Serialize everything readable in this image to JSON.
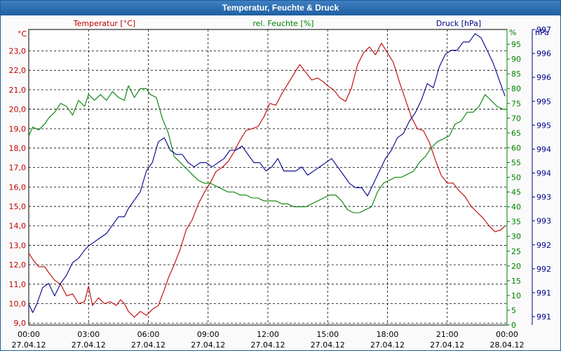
{
  "window": {
    "title": "Temperatur, Feuchte & Druck"
  },
  "chart_data": {
    "type": "line",
    "title": "Temperatur, Feuchte & Druck",
    "x_ticks": [
      {
        "time": "00:00",
        "date": "27.04.12"
      },
      {
        "time": "03:00",
        "date": "27.04.12"
      },
      {
        "time": "06:00",
        "date": "27.04.12"
      },
      {
        "time": "09:00",
        "date": "27.04.12"
      },
      {
        "time": "12:00",
        "date": "27.04.12"
      },
      {
        "time": "15:00",
        "date": "27.04.12"
      },
      {
        "time": "18:00",
        "date": "27.04.12"
      },
      {
        "time": "21:00",
        "date": "27.04.12"
      },
      {
        "time": "00:00",
        "date": "28.04.12"
      }
    ],
    "xlim_hours": [
      0,
      24
    ],
    "grid": true,
    "axes": {
      "temperature": {
        "label": "Temperatur [°C]",
        "unit": "°C",
        "color": "#c00000",
        "side": "left",
        "ylim": [
          8.9,
          24.1
        ],
        "ticks": [
          "9,0",
          "10,0",
          "11,0",
          "12,0",
          "13,0",
          "14,0",
          "15,0",
          "16,0",
          "17,0",
          "18,0",
          "19,0",
          "20,0",
          "21,0",
          "22,0",
          "23,0"
        ]
      },
      "humidity": {
        "label": "rel. Feuchte [%]",
        "unit": "%",
        "color": "#008000",
        "side": "right",
        "ylim": [
          0,
          100
        ],
        "ticks": [
          "0",
          "5",
          "10",
          "15",
          "20",
          "25",
          "30",
          "35",
          "40",
          "45",
          "50",
          "55",
          "60",
          "65",
          "70",
          "75",
          "80",
          "85",
          "90",
          "95"
        ]
      },
      "pressure": {
        "label": "Druck [hPa]",
        "unit": "hPa",
        "color": "#00008b",
        "side": "right-outer",
        "ylim": [
          990.4,
          997.5
        ],
        "ticks": [
          "991",
          "991",
          "992",
          "992",
          "993",
          "993",
          "994",
          "994",
          "995",
          "995",
          "996",
          "996",
          "997"
        ]
      }
    },
    "series": [
      {
        "name": "Temperatur [°C]",
        "axis": "temperature",
        "color": "#c00000",
        "x": [
          0,
          0.25,
          0.5,
          0.8,
          1,
          1.3,
          1.6,
          1.9,
          2.2,
          2.5,
          2.8,
          3,
          3.2,
          3.5,
          3.8,
          4.1,
          4.4,
          4.6,
          4.8,
          5,
          5.3,
          5.6,
          5.9,
          6.2,
          6.5,
          6.8,
          7,
          7.3,
          7.6,
          7.9,
          8.2,
          8.5,
          8.8,
          9.1,
          9.4,
          9.7,
          10,
          10.3,
          10.6,
          10.9,
          11.2,
          11.5,
          11.8,
          12.1,
          12.4,
          12.7,
          13,
          13.3,
          13.6,
          13.9,
          14.2,
          14.5,
          14.8,
          15,
          15.3,
          15.6,
          15.9,
          16.2,
          16.5,
          16.8,
          17.1,
          17.4,
          17.7,
          18,
          18.3,
          18.6,
          18.9,
          19.2,
          19.5,
          19.8,
          20.1,
          20.4,
          20.7,
          21,
          21.3,
          21.6,
          21.9,
          22.2,
          22.5,
          22.8,
          23.1,
          23.4,
          23.7,
          23.9
        ],
        "values": [
          12.6,
          12.2,
          11.9,
          11.9,
          11.6,
          11.2,
          11.0,
          10.4,
          10.5,
          10.0,
          10.1,
          10.9,
          9.9,
          10.3,
          10.0,
          10.1,
          9.9,
          10.2,
          10.0,
          9.6,
          9.3,
          9.6,
          9.4,
          9.7,
          9.9,
          10.7,
          11.3,
          12.0,
          12.8,
          13.8,
          14.3,
          15.1,
          15.7,
          16.2,
          16.8,
          17.0,
          17.3,
          17.8,
          18.4,
          18.9,
          19.0,
          19.1,
          19.6,
          20.3,
          20.2,
          20.8,
          21.3,
          21.8,
          22.3,
          21.9,
          21.5,
          21.6,
          21.4,
          21.2,
          21.0,
          20.6,
          20.4,
          21.1,
          22.3,
          22.9,
          23.2,
          22.8,
          23.4,
          22.9,
          22.4,
          21.4,
          20.5,
          19.6,
          19.0,
          18.9,
          18.3,
          17.4,
          16.6,
          16.2,
          16.2,
          15.8,
          15.5,
          15.0,
          14.7,
          14.4,
          14.0,
          13.7,
          13.8,
          14.0
        ]
      },
      {
        "name": "rel. Feuchte [%]",
        "axis": "humidity",
        "color": "#008000",
        "x": [
          0,
          0.2,
          0.5,
          0.8,
          1,
          1.3,
          1.6,
          1.9,
          2.2,
          2.5,
          2.8,
          3,
          3.3,
          3.6,
          3.9,
          4.2,
          4.5,
          4.8,
          5,
          5.3,
          5.6,
          5.9,
          6.1,
          6.4,
          6.7,
          7,
          7.3,
          7.6,
          7.9,
          8.2,
          8.5,
          8.8,
          9.1,
          9.4,
          9.7,
          10,
          10.3,
          10.6,
          10.9,
          11.2,
          11.5,
          11.8,
          12.1,
          12.4,
          12.7,
          13,
          13.3,
          13.6,
          13.9,
          14.2,
          14.5,
          14.8,
          15.1,
          15.4,
          15.7,
          16,
          16.3,
          16.6,
          16.9,
          17.2,
          17.5,
          17.8,
          18.1,
          18.4,
          18.7,
          19,
          19.3,
          19.6,
          19.9,
          20.2,
          20.5,
          20.8,
          21.1,
          21.4,
          21.7,
          22,
          22.3,
          22.6,
          22.9,
          23.2,
          23.5,
          23.8,
          24
        ],
        "values": [
          64,
          67,
          66,
          68,
          70,
          72,
          75,
          74,
          71,
          76,
          74,
          78,
          76,
          78,
          76,
          79,
          77,
          76,
          81,
          77,
          80,
          80,
          78,
          77,
          70,
          65,
          57,
          55,
          53,
          51,
          49,
          48,
          48,
          47,
          46,
          45,
          45,
          44,
          44,
          43,
          43,
          42,
          42,
          42,
          41,
          41,
          40,
          40,
          40,
          41,
          42,
          43,
          44,
          44,
          42,
          39,
          38,
          38,
          39,
          40,
          45,
          48,
          49,
          50,
          50,
          51,
          52,
          55,
          57,
          60,
          62,
          63,
          64,
          68,
          69,
          72,
          72,
          74,
          78,
          76,
          74,
          73,
          73
        ]
      },
      {
        "name": "Druck [hPa]",
        "axis": "pressure",
        "color": "#00008b",
        "x": [
          0,
          0.2,
          0.4,
          0.7,
          1,
          1.3,
          1.6,
          1.9,
          2.2,
          2.5,
          2.8,
          3,
          3.3,
          3.6,
          3.9,
          4.2,
          4.5,
          4.8,
          5,
          5.3,
          5.6,
          5.9,
          6.2,
          6.5,
          6.8,
          7.1,
          7.4,
          7.7,
          8,
          8.3,
          8.6,
          8.9,
          9.2,
          9.5,
          9.8,
          10.1,
          10.4,
          10.7,
          11,
          11.3,
          11.6,
          11.9,
          12.2,
          12.5,
          12.8,
          13.1,
          13.4,
          13.7,
          14,
          14.3,
          14.6,
          14.9,
          15.2,
          15.5,
          15.8,
          16.1,
          16.4,
          16.7,
          17,
          17.3,
          17.6,
          17.9,
          18.2,
          18.5,
          18.8,
          19.1,
          19.4,
          19.7,
          20,
          20.3,
          20.6,
          20.9,
          21.2,
          21.5,
          21.8,
          22.1,
          22.4,
          22.7,
          23,
          23.3,
          23.6,
          23.9
        ],
        "values": [
          990.9,
          990.7,
          990.9,
          991.3,
          991.4,
          991.1,
          991.4,
          991.6,
          991.9,
          992.0,
          992.2,
          992.3,
          992.4,
          992.5,
          992.6,
          992.8,
          993.0,
          993.0,
          993.2,
          993.4,
          993.6,
          994.1,
          994.3,
          994.8,
          994.9,
          994.6,
          994.5,
          994.5,
          994.3,
          994.2,
          994.3,
          994.3,
          994.2,
          994.3,
          994.4,
          994.6,
          994.6,
          994.7,
          994.5,
          994.3,
          994.3,
          994.1,
          994.2,
          994.4,
          994.1,
          994.1,
          994.1,
          994.2,
          994.0,
          994.1,
          994.2,
          994.3,
          994.4,
          994.2,
          994.0,
          993.8,
          993.7,
          993.7,
          993.5,
          993.8,
          994.1,
          994.4,
          994.6,
          994.9,
          995.0,
          995.3,
          995.5,
          995.8,
          996.2,
          996.1,
          996.6,
          996.9,
          997.0,
          997.0,
          997.2,
          997.2,
          997.4,
          997.3,
          997.0,
          996.7,
          996.3,
          995.9
        ]
      }
    ]
  }
}
